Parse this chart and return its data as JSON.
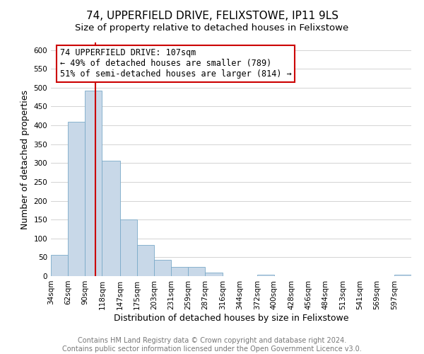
{
  "title": "74, UPPERFIELD DRIVE, FELIXSTOWE, IP11 9LS",
  "subtitle": "Size of property relative to detached houses in Felixstowe",
  "xlabel": "Distribution of detached houses by size in Felixstowe",
  "ylabel": "Number of detached properties",
  "bar_color": "#c8d8e8",
  "bar_edge_color": "#7aaac8",
  "bin_labels": [
    "34sqm",
    "62sqm",
    "90sqm",
    "118sqm",
    "147sqm",
    "175sqm",
    "203sqm",
    "231sqm",
    "259sqm",
    "287sqm",
    "316sqm",
    "344sqm",
    "372sqm",
    "400sqm",
    "428sqm",
    "456sqm",
    "484sqm",
    "513sqm",
    "541sqm",
    "569sqm",
    "597sqm"
  ],
  "bar_values": [
    57,
    410,
    493,
    307,
    150,
    82,
    44,
    25,
    25,
    10,
    0,
    0,
    3,
    0,
    0,
    0,
    0,
    0,
    0,
    0,
    3
  ],
  "ylim": [
    0,
    620
  ],
  "yticks": [
    0,
    50,
    100,
    150,
    200,
    250,
    300,
    350,
    400,
    450,
    500,
    550,
    600
  ],
  "bin_edges": [
    34,
    62,
    90,
    118,
    147,
    175,
    203,
    231,
    259,
    287,
    316,
    344,
    372,
    400,
    428,
    456,
    484,
    513,
    541,
    569,
    597,
    625
  ],
  "property_size": 107,
  "annotation_title": "74 UPPERFIELD DRIVE: 107sqm",
  "annotation_line1": "← 49% of detached houses are smaller (789)",
  "annotation_line2": "51% of semi-detached houses are larger (814) →",
  "vline_color": "#cc0000",
  "annotation_box_edge": "#cc0000",
  "footer1": "Contains HM Land Registry data © Crown copyright and database right 2024.",
  "footer2": "Contains public sector information licensed under the Open Government Licence v3.0.",
  "title_fontsize": 11,
  "subtitle_fontsize": 9.5,
  "axis_label_fontsize": 9,
  "tick_fontsize": 7.5,
  "annotation_fontsize": 8.5,
  "footer_fontsize": 7
}
